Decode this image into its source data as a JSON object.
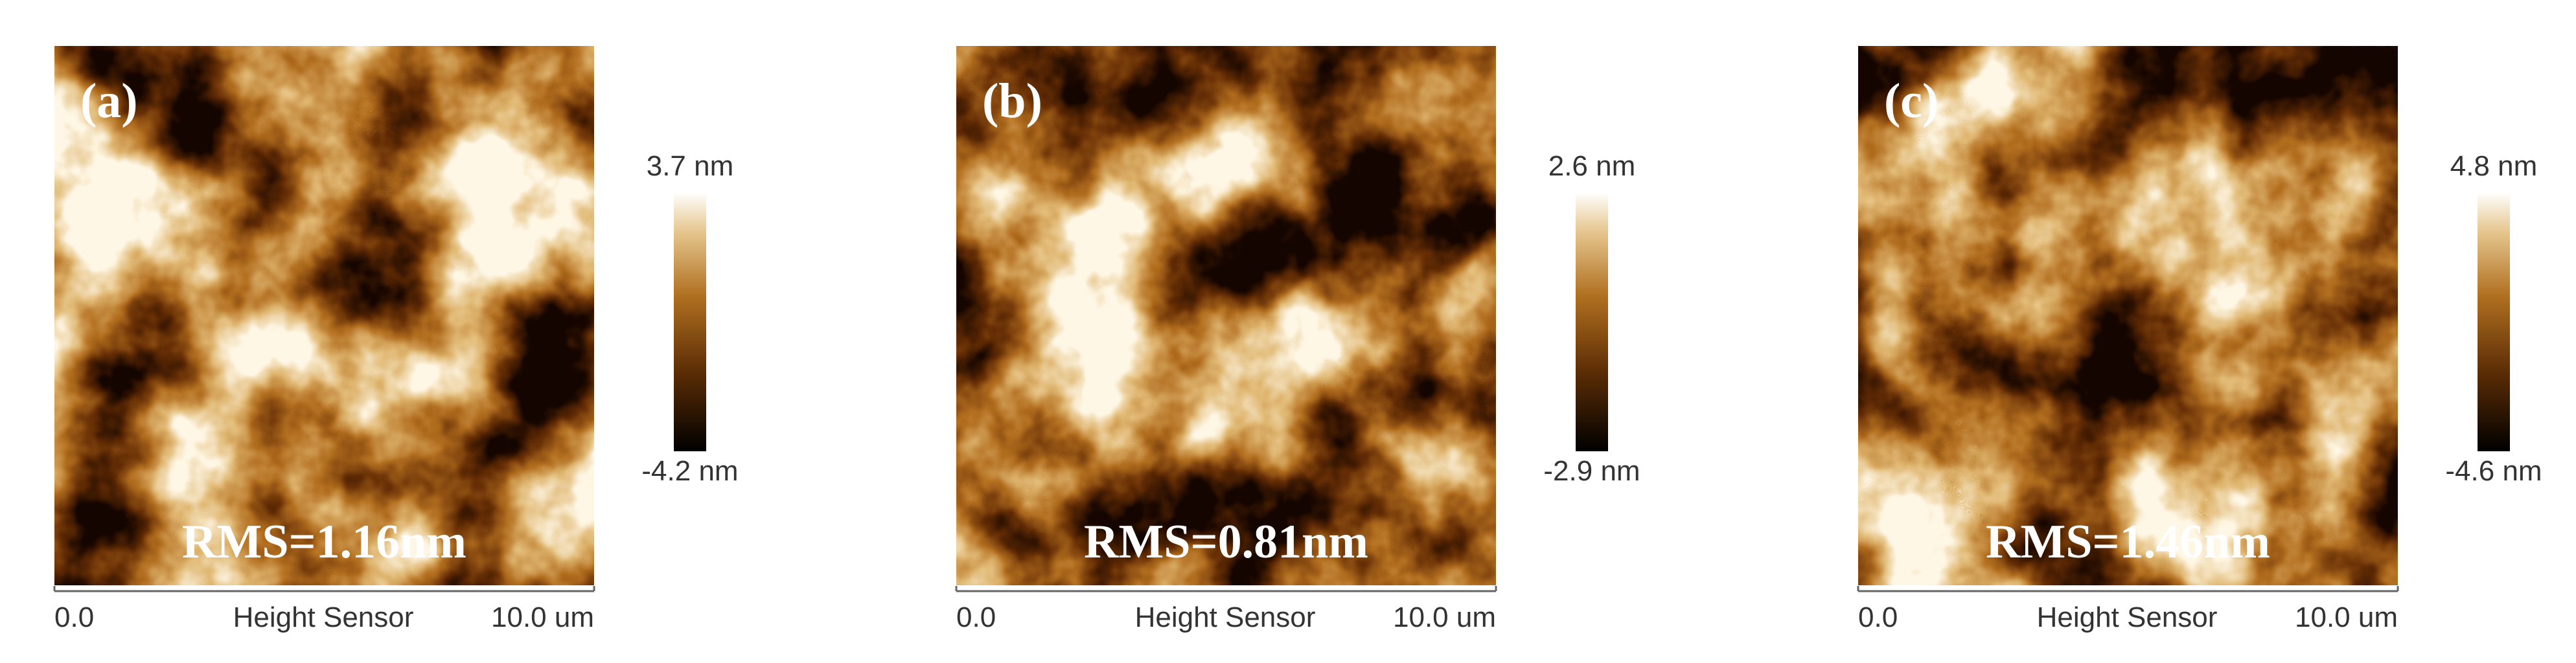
{
  "panels": [
    {
      "label": "(a)",
      "rms": "RMS=1.16nm",
      "scale_max": "3.7 nm",
      "scale_min": "-4.2 nm",
      "x_start": "0.0",
      "x_label": "Height Sensor",
      "x_end": "10.0 um"
    },
    {
      "label": "(b)",
      "rms": "RMS=0.81nm",
      "scale_max": "2.6 nm",
      "scale_min": "-2.9 nm",
      "x_start": "0.0",
      "x_label": "Height Sensor",
      "x_end": "10.0 um"
    },
    {
      "label": "(c)",
      "rms": "RMS=1.46nm",
      "scale_max": "4.8 nm",
      "scale_min": "-4.6 nm",
      "x_start": "0.0",
      "x_label": "Height Sensor",
      "x_end": "10.0 um"
    }
  ]
}
